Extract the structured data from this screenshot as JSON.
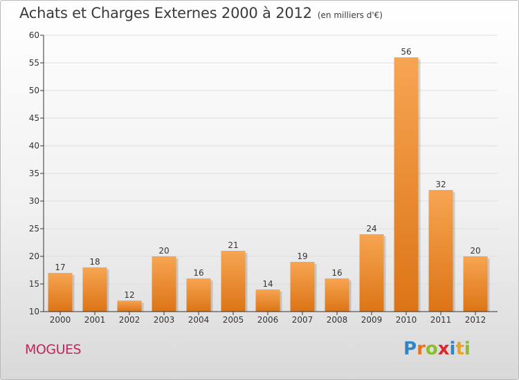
{
  "title": "Achats et Charges Externes 2000 à 2012",
  "unit": "(en milliers d'€)",
  "city": "MOGUES",
  "logo": {
    "text": "Proxiti",
    "letters": [
      "P",
      "r",
      "o",
      "x",
      "i",
      "t",
      "i"
    ],
    "colors": [
      "#2e86c8",
      "#e9731c",
      "#8cbd2b",
      "#d9282f",
      "#2e86c8",
      "#e9a51c",
      "#8cbd2b"
    ]
  },
  "colors": {
    "bar_light": "#f7a552",
    "bar_dark": "#dc7416",
    "axis": "#333333",
    "grid": "#dddddd"
  },
  "chart_data": {
    "type": "bar",
    "title": "Achats et Charges Externes 2000 à 2012",
    "subtitle": "(en milliers d'€)",
    "categories": [
      "2000",
      "2001",
      "2002",
      "2003",
      "2004",
      "2005",
      "2006",
      "2007",
      "2008",
      "2009",
      "2010",
      "2011",
      "2012"
    ],
    "values": [
      17,
      18,
      12,
      20,
      16,
      21,
      14,
      19,
      16,
      24,
      56,
      32,
      20
    ],
    "ylim": [
      10,
      60
    ],
    "yticks": [
      10,
      15,
      20,
      25,
      30,
      35,
      40,
      45,
      50,
      55,
      60
    ],
    "grid": true
  }
}
